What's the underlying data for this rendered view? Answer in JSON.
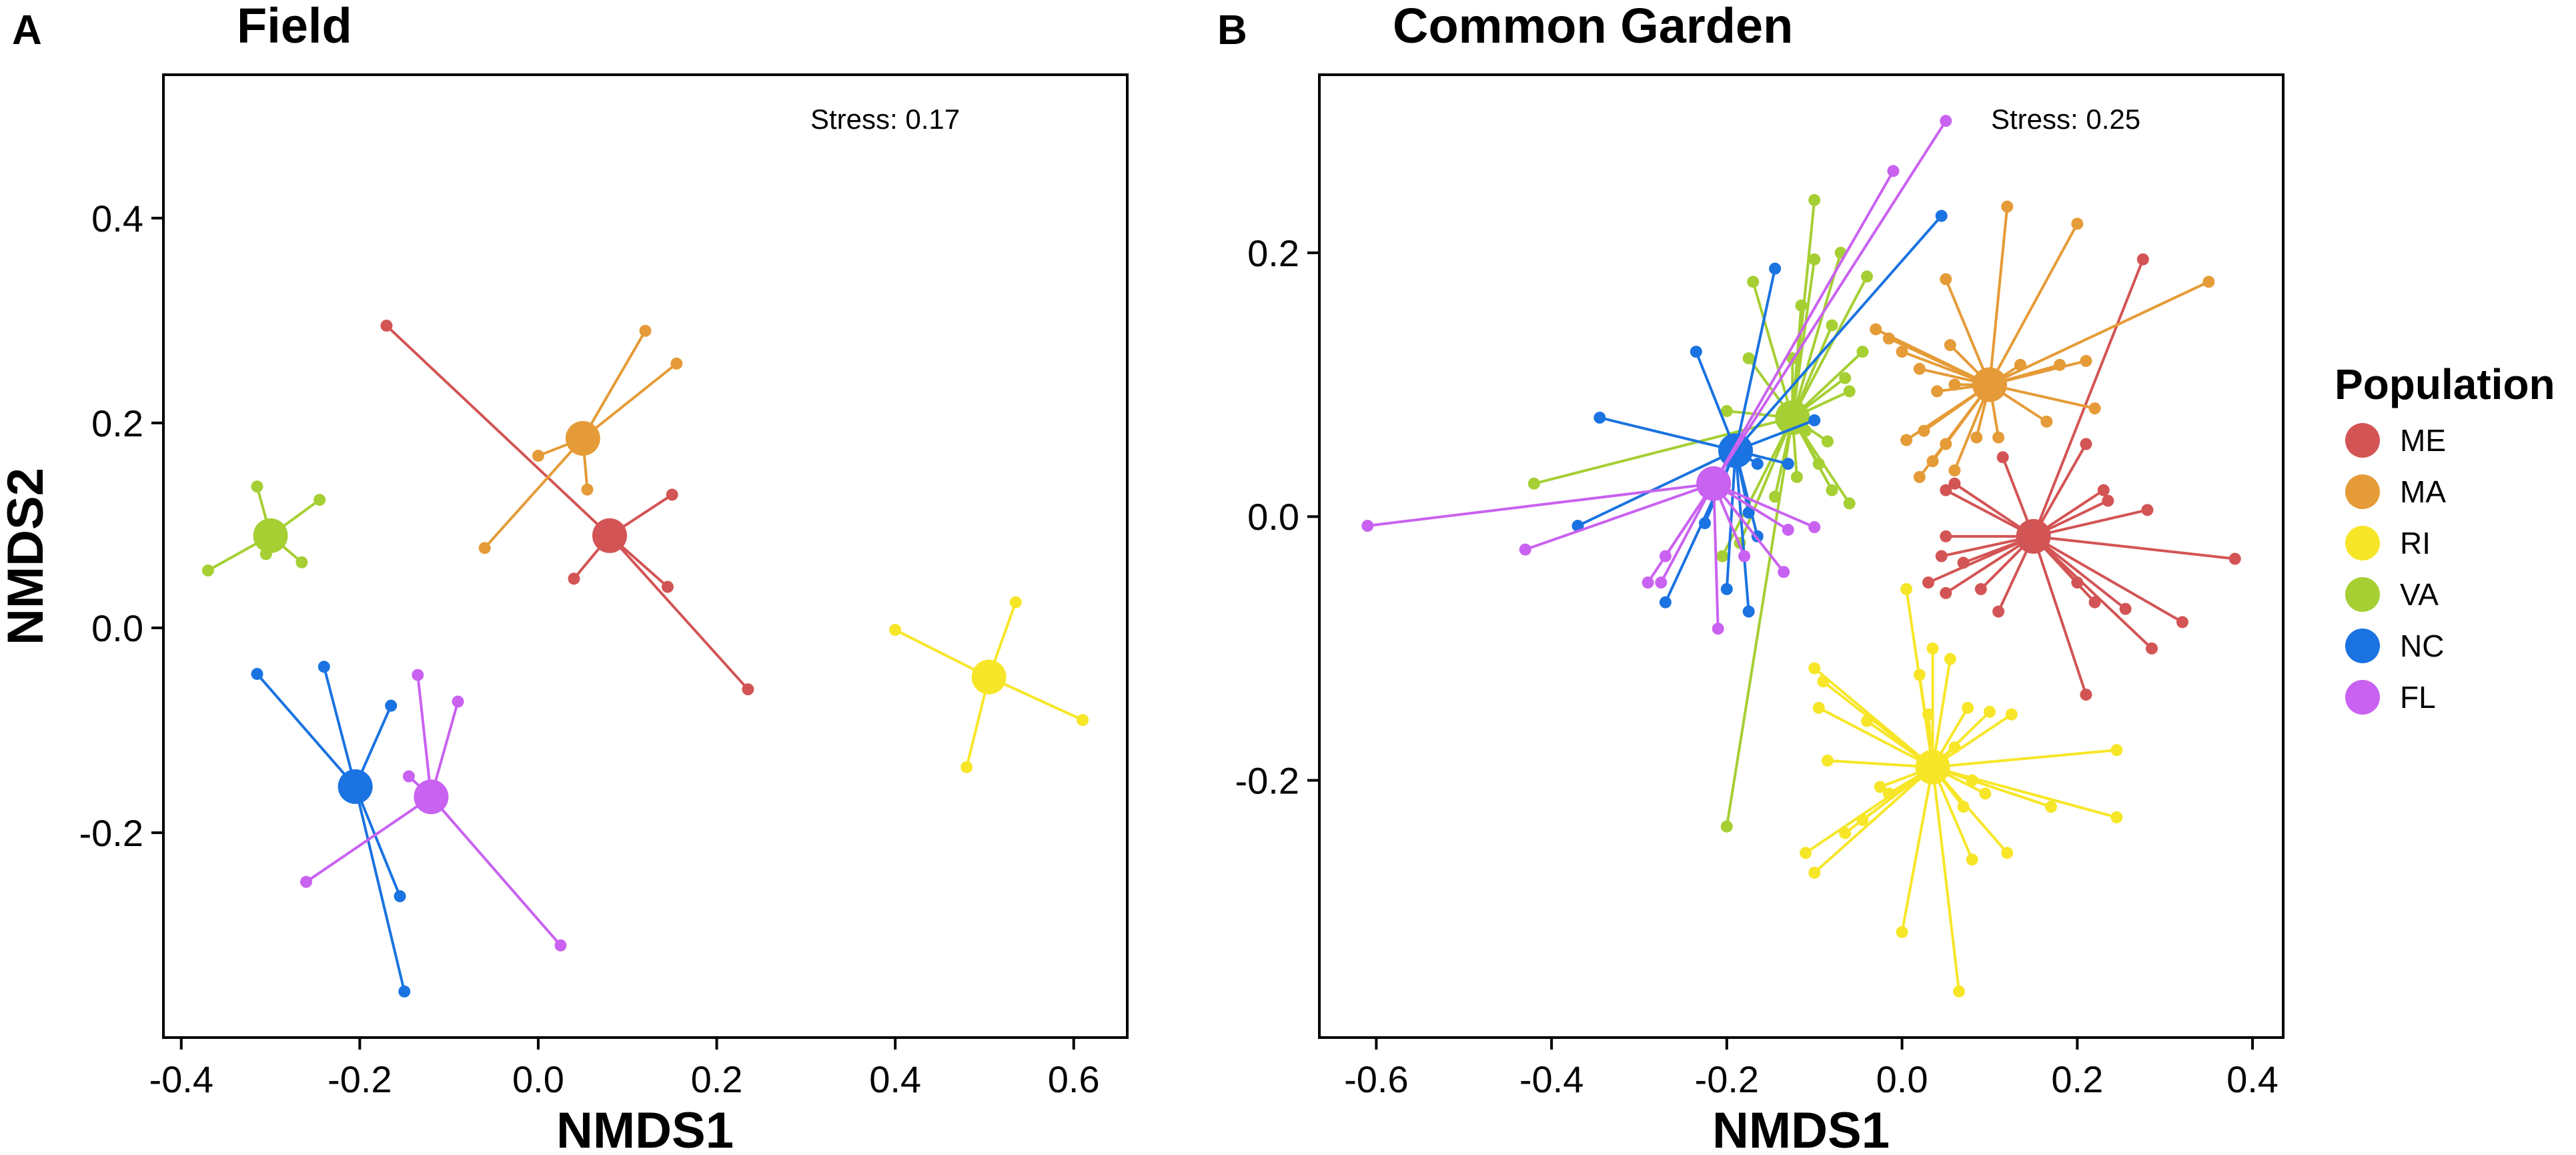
{
  "chart_data": [
    {
      "type": "scatter",
      "panel_label": "A",
      "title": "Field",
      "xlabel": "NMDS1",
      "ylabel": "NMDS2",
      "xlim": [
        -0.42,
        0.66
      ],
      "ylim": [
        -0.4,
        0.54
      ],
      "xticks": [
        {
          "v": -0.4,
          "label": "-0.4"
        },
        {
          "v": -0.2,
          "label": "-0.2"
        },
        {
          "v": 0.0,
          "label": "0.0"
        },
        {
          "v": 0.2,
          "label": "0.2"
        },
        {
          "v": 0.4,
          "label": "0.4"
        },
        {
          "v": 0.6,
          "label": "0.6"
        }
      ],
      "yticks": [
        {
          "v": -0.2,
          "label": "-0.2"
        },
        {
          "v": 0.0,
          "label": "0.0"
        },
        {
          "v": 0.2,
          "label": "0.2"
        },
        {
          "v": 0.4,
          "label": "0.4"
        }
      ],
      "annotation": "Stress: 0.17",
      "grid": false,
      "series": [
        {
          "name": "ME",
          "centroid": [
            0.08,
            0.09
          ],
          "points": [
            [
              -0.17,
              0.295
            ],
            [
              0.15,
              0.13
            ],
            [
              0.04,
              0.048
            ],
            [
              0.145,
              0.04
            ],
            [
              0.235,
              -0.06
            ]
          ]
        },
        {
          "name": "MA",
          "centroid": [
            0.05,
            0.185
          ],
          "points": [
            [
              0.12,
              0.29
            ],
            [
              0.155,
              0.258
            ],
            [
              0.0,
              0.168
            ],
            [
              0.055,
              0.135
            ],
            [
              -0.06,
              0.078
            ]
          ]
        },
        {
          "name": "RI",
          "centroid": [
            0.505,
            -0.048
          ],
          "points": [
            [
              0.535,
              0.025
            ],
            [
              0.4,
              -0.002
            ],
            [
              0.61,
              -0.09
            ],
            [
              0.48,
              -0.136
            ]
          ]
        },
        {
          "name": "VA",
          "centroid": [
            -0.3,
            0.09
          ],
          "points": [
            [
              -0.315,
              0.138
            ],
            [
              -0.245,
              0.125
            ],
            [
              -0.305,
              0.072
            ],
            [
              -0.265,
              0.064
            ],
            [
              -0.37,
              0.056
            ]
          ]
        },
        {
          "name": "NC",
          "centroid": [
            -0.205,
            -0.155
          ],
          "points": [
            [
              -0.315,
              -0.045
            ],
            [
              -0.24,
              -0.038
            ],
            [
              -0.165,
              -0.076
            ],
            [
              -0.155,
              -0.262
            ],
            [
              -0.15,
              -0.355
            ]
          ]
        },
        {
          "name": "FL",
          "centroid": [
            -0.12,
            -0.165
          ],
          "points": [
            [
              -0.135,
              -0.046
            ],
            [
              -0.09,
              -0.072
            ],
            [
              -0.145,
              -0.145
            ],
            [
              -0.26,
              -0.248
            ],
            [
              0.025,
              -0.31
            ]
          ]
        }
      ]
    },
    {
      "type": "scatter",
      "panel_label": "B",
      "title": "Common Garden",
      "xlabel": "NMDS1",
      "ylabel": "",
      "xlim": [
        -0.665,
        0.435
      ],
      "ylim": [
        -0.395,
        0.335
      ],
      "xticks": [
        {
          "v": -0.6,
          "label": "-0.6"
        },
        {
          "v": -0.4,
          "label": "-0.4"
        },
        {
          "v": -0.2,
          "label": "-0.2"
        },
        {
          "v": 0.0,
          "label": "0.0"
        },
        {
          "v": 0.2,
          "label": "0.2"
        },
        {
          "v": 0.4,
          "label": "0.4"
        }
      ],
      "yticks": [
        {
          "v": -0.2,
          "label": "-0.2"
        },
        {
          "v": 0.0,
          "label": "0.0"
        },
        {
          "v": 0.2,
          "label": "0.2"
        }
      ],
      "annotation": "Stress: 0.25",
      "grid": false,
      "series": [
        {
          "name": "ME",
          "centroid": [
            0.15,
            -0.015
          ],
          "points": [
            [
              0.275,
              0.195
            ],
            [
              0.21,
              0.055
            ],
            [
              0.115,
              0.045
            ],
            [
              0.06,
              0.025
            ],
            [
              0.05,
              0.02
            ],
            [
              0.23,
              0.02
            ],
            [
              0.235,
              0.012
            ],
            [
              0.28,
              0.005
            ],
            [
              0.05,
              -0.015
            ],
            [
              0.045,
              -0.03
            ],
            [
              0.07,
              -0.035
            ],
            [
              0.38,
              -0.032
            ],
            [
              0.03,
              -0.05
            ],
            [
              0.09,
              -0.055
            ],
            [
              0.2,
              -0.05
            ],
            [
              0.11,
              -0.072
            ],
            [
              0.22,
              -0.065
            ],
            [
              0.255,
              -0.07
            ],
            [
              0.32,
              -0.08
            ],
            [
              0.285,
              -0.1
            ],
            [
              0.21,
              -0.135
            ],
            [
              0.05,
              -0.058
            ]
          ]
        },
        {
          "name": "MA",
          "centroid": [
            0.1,
            0.1
          ],
          "points": [
            [
              0.12,
              0.235
            ],
            [
              0.2,
              0.222
            ],
            [
              0.35,
              0.178
            ],
            [
              0.05,
              0.18
            ],
            [
              -0.03,
              0.142
            ],
            [
              -0.015,
              0.135
            ],
            [
              0.0,
              0.125
            ],
            [
              0.055,
              0.13
            ],
            [
              0.02,
              0.112
            ],
            [
              0.135,
              0.115
            ],
            [
              0.18,
              0.115
            ],
            [
              0.21,
              0.118
            ],
            [
              0.22,
              0.082
            ],
            [
              0.04,
              0.095
            ],
            [
              0.06,
              0.1
            ],
            [
              0.005,
              0.058
            ],
            [
              0.025,
              0.065
            ],
            [
              0.035,
              0.042
            ],
            [
              0.05,
              0.055
            ],
            [
              0.085,
              0.06
            ],
            [
              0.11,
              0.06
            ],
            [
              0.165,
              0.072
            ],
            [
              0.06,
              0.035
            ],
            [
              0.02,
              0.03
            ]
          ]
        },
        {
          "name": "RI",
          "centroid": [
            0.035,
            -0.19
          ],
          "points": [
            [
              0.005,
              -0.055
            ],
            [
              -0.1,
              -0.115
            ],
            [
              -0.09,
              -0.125
            ],
            [
              0.02,
              -0.12
            ],
            [
              0.035,
              -0.1
            ],
            [
              0.055,
              -0.108
            ],
            [
              -0.095,
              -0.145
            ],
            [
              0.03,
              -0.15
            ],
            [
              0.075,
              -0.145
            ],
            [
              0.1,
              -0.148
            ],
            [
              0.125,
              -0.15
            ],
            [
              -0.04,
              -0.155
            ],
            [
              -0.085,
              -0.185
            ],
            [
              0.245,
              -0.177
            ],
            [
              0.06,
              -0.175
            ],
            [
              0.08,
              -0.2
            ],
            [
              0.095,
              -0.21
            ],
            [
              0.17,
              -0.22
            ],
            [
              -0.025,
              -0.205
            ],
            [
              -0.045,
              -0.23
            ],
            [
              0.245,
              -0.228
            ],
            [
              0.07,
              -0.22
            ],
            [
              -0.065,
              -0.24
            ],
            [
              0.12,
              -0.255
            ],
            [
              -0.11,
              -0.255
            ],
            [
              -0.1,
              -0.27
            ],
            [
              0.08,
              -0.26
            ],
            [
              0.0,
              -0.315
            ],
            [
              0.065,
              -0.36
            ],
            [
              -0.015,
              -0.21
            ]
          ]
        },
        {
          "name": "VA",
          "centroid": [
            -0.125,
            0.075
          ],
          "points": [
            [
              -0.1,
              0.24
            ],
            [
              -0.07,
              0.2
            ],
            [
              -0.1,
              0.195
            ],
            [
              -0.17,
              0.178
            ],
            [
              -0.04,
              0.182
            ],
            [
              -0.08,
              0.145
            ],
            [
              -0.045,
              0.125
            ],
            [
              -0.115,
              0.16
            ],
            [
              -0.175,
              0.12
            ],
            [
              -0.125,
              0.12
            ],
            [
              -0.065,
              0.105
            ],
            [
              -0.06,
              0.095
            ],
            [
              -0.2,
              0.08
            ],
            [
              -0.11,
              0.065
            ],
            [
              -0.085,
              0.057
            ],
            [
              -0.42,
              0.025
            ],
            [
              -0.08,
              0.02
            ],
            [
              -0.12,
              0.03
            ],
            [
              -0.06,
              0.01
            ],
            [
              -0.145,
              0.015
            ],
            [
              -0.205,
              -0.03
            ],
            [
              -0.2,
              -0.235
            ],
            [
              -0.185,
              -0.02
            ],
            [
              -0.095,
              0.04
            ]
          ]
        },
        {
          "name": "NC",
          "centroid": [
            -0.19,
            0.05
          ],
          "points": [
            [
              -0.1,
              0.073
            ],
            [
              0.045,
              0.228
            ],
            [
              -0.145,
              0.188
            ],
            [
              -0.235,
              0.125
            ],
            [
              -0.345,
              0.075
            ],
            [
              -0.165,
              0.04
            ],
            [
              -0.13,
              0.04
            ],
            [
              -0.175,
              0.003
            ],
            [
              -0.225,
              -0.005
            ],
            [
              -0.37,
              -0.007
            ],
            [
              -0.165,
              -0.015
            ],
            [
              -0.27,
              -0.065
            ],
            [
              -0.175,
              -0.072
            ],
            [
              -0.2,
              -0.055
            ]
          ]
        },
        {
          "name": "FL",
          "centroid": [
            -0.215,
            0.025
          ],
          "points": [
            [
              0.05,
              0.3
            ],
            [
              -0.01,
              0.262
            ],
            [
              -0.61,
              -0.007
            ],
            [
              -0.43,
              -0.025
            ],
            [
              -0.13,
              -0.01
            ],
            [
              -0.1,
              -0.008
            ],
            [
              -0.27,
              -0.03
            ],
            [
              -0.18,
              -0.03
            ],
            [
              -0.135,
              -0.042
            ],
            [
              -0.275,
              -0.05
            ],
            [
              -0.29,
              -0.05
            ],
            [
              -0.21,
              -0.085
            ]
          ]
        }
      ]
    }
  ],
  "legend": {
    "title": "Population",
    "position": "right",
    "entries": [
      {
        "name": "ME",
        "label": "ME",
        "color": "#d35454"
      },
      {
        "name": "MA",
        "label": "MA",
        "color": "#e59b37"
      },
      {
        "name": "RI",
        "label": "RI",
        "color": "#f7e628"
      },
      {
        "name": "VA",
        "label": "VA",
        "color": "#a5cf33"
      },
      {
        "name": "NC",
        "label": "NC",
        "color": "#1a73e0"
      },
      {
        "name": "FL",
        "label": "FL",
        "color": "#c962f0"
      }
    ]
  }
}
